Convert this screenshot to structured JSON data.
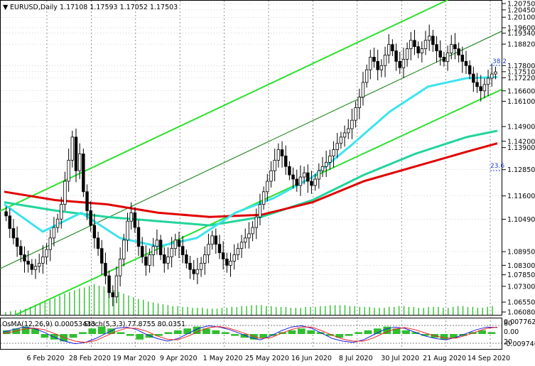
{
  "header": {
    "symbol": "EURUSD,Daily",
    "ohlc": "1.17108 1.17593 1.17052 1.17503"
  },
  "sub_header": {
    "osma": "OsMA(12,26,9) 0.00053433",
    "stoch": "Stoch(5,3,3) 77.8755 80.0351"
  },
  "colors": {
    "background": "#ffffff",
    "candle": "#000000",
    "grid": "#000000",
    "ma_cyan": "#3de3ee",
    "ma_teal": "#22d49b",
    "ma_red": "#e00000",
    "channel": "#2ee02e",
    "volume": "#2fbe2f",
    "osma": "#2fbe2f",
    "stoch_main": "#1d1ddf",
    "stoch_signal": "#ee2222",
    "fib": "#1f3fd0"
  },
  "chart_data": {
    "type": "candlestick",
    "title": "EURUSD,Daily",
    "ylim": [
      1.0608,
      1.2075
    ],
    "price_axis_labels": [
      "1.20750",
      "1.20450",
      "1.20100",
      "1.19600",
      "1.19340",
      "1.18820",
      "1.17800",
      "1.17510",
      "1.17220",
      "1.16600",
      "1.16100",
      "1.14900",
      "1.14200",
      "1.13900",
      "1.12850",
      "1.11600",
      "1.10490",
      "1.08950",
      "1.08300",
      "1.07850",
      "1.07300",
      "1.06550",
      "1.06080"
    ],
    "date_labels": [
      "6 Feb 2020",
      "28 Feb 2020",
      "19 Mar 2020",
      "9 Apr 2020",
      "1 May 2020",
      "25 May 2020",
      "16 Jun 2020",
      "8 Jul 2020",
      "30 Jul 2020",
      "21 Aug 2020",
      "14 Sep 2020"
    ],
    "fib_labels": [
      "38.2",
      "23.6"
    ],
    "candles_close": [
      1.1065,
      1.1005,
      1.096,
      1.092,
      1.088,
      1.085,
      1.0835,
      1.081,
      1.0825,
      1.084,
      1.087,
      1.0905,
      1.096,
      1.101,
      1.105,
      1.112,
      1.123,
      1.133,
      1.144,
      1.128,
      1.136,
      1.118,
      1.109,
      1.102,
      1.096,
      1.091,
      1.084,
      1.078,
      1.07,
      1.068,
      1.078,
      1.086,
      1.095,
      1.104,
      1.108,
      1.101,
      1.092,
      1.087,
      1.083,
      1.088,
      1.092,
      1.095,
      1.088,
      1.084,
      1.087,
      1.091,
      1.095,
      1.092,
      1.088,
      1.084,
      1.081,
      1.079,
      1.081,
      1.084,
      1.088,
      1.093,
      1.097,
      1.093,
      1.089,
      1.086,
      1.083,
      1.085,
      1.088,
      1.091,
      1.094,
      1.096,
      1.098,
      1.101,
      1.106,
      1.112,
      1.118,
      1.123,
      1.128,
      1.133,
      1.138,
      1.135,
      1.13,
      1.126,
      1.124,
      1.121,
      1.125,
      1.127,
      1.123,
      1.121,
      1.124,
      1.128,
      1.13,
      1.132,
      1.135,
      1.138,
      1.141,
      1.144,
      1.146,
      1.148,
      1.152,
      1.158,
      1.163,
      1.17,
      1.176,
      1.182,
      1.18,
      1.176,
      1.178,
      1.183,
      1.188,
      1.185,
      1.18,
      1.177,
      1.181,
      1.186,
      1.19,
      1.187,
      1.184,
      1.186,
      1.19,
      1.192,
      1.188,
      1.185,
      1.182,
      1.18,
      1.184,
      1.188,
      1.186,
      1.183,
      1.18,
      1.178,
      1.174,
      1.17,
      1.168,
      1.166,
      1.169,
      1.172,
      1.174,
      1.175
    ],
    "ma_cyan": [
      [
        0,
        1.112
      ],
      [
        15,
        1.099
      ],
      [
        30,
        1.108
      ],
      [
        45,
        1.096
      ],
      [
        60,
        1.092
      ],
      [
        75,
        1.096
      ],
      [
        90,
        1.108
      ],
      [
        105,
        1.115
      ],
      [
        120,
        1.125
      ],
      [
        135,
        1.14
      ],
      [
        150,
        1.156
      ],
      [
        165,
        1.168
      ],
      [
        180,
        1.172
      ],
      [
        192,
        1.1725
      ]
    ],
    "ma_teal": [
      [
        0,
        1.113
      ],
      [
        20,
        1.109
      ],
      [
        40,
        1.106
      ],
      [
        60,
        1.104
      ],
      [
        80,
        1.102
      ],
      [
        100,
        1.106
      ],
      [
        120,
        1.114
      ],
      [
        140,
        1.126
      ],
      [
        160,
        1.136
      ],
      [
        180,
        1.144
      ],
      [
        192,
        1.147
      ]
    ],
    "ma_red": [
      [
        0,
        1.118
      ],
      [
        20,
        1.114
      ],
      [
        40,
        1.112
      ],
      [
        60,
        1.108
      ],
      [
        80,
        1.106
      ],
      [
        100,
        1.107
      ],
      [
        120,
        1.113
      ],
      [
        140,
        1.123
      ],
      [
        160,
        1.13
      ],
      [
        180,
        1.137
      ],
      [
        192,
        1.141
      ]
    ],
    "volume": [
      6,
      8,
      10,
      12,
      14,
      18,
      22,
      26,
      30,
      34,
      38,
      44,
      48,
      52,
      56,
      60,
      62,
      66,
      70,
      66,
      64,
      60,
      56,
      52,
      48,
      44,
      40,
      36,
      34,
      30,
      28,
      26,
      24,
      22,
      20,
      20,
      18,
      18,
      16,
      16,
      16,
      14,
      14,
      14,
      16,
      16,
      18,
      18,
      20,
      20,
      22,
      22,
      22,
      20,
      20,
      18,
      18,
      18,
      16,
      16,
      16,
      18,
      18,
      18,
      20,
      20,
      22,
      22,
      22,
      22,
      20,
      20,
      18,
      18,
      18,
      16,
      16,
      16,
      18,
      18,
      20,
      20,
      18,
      18,
      16,
      16,
      18,
      18,
      18,
      16,
      16,
      18,
      20,
      20,
      18,
      18,
      16,
      16,
      18,
      20
    ],
    "osma": [
      2,
      3,
      4,
      3,
      -2,
      -3,
      -4,
      -2,
      1,
      3,
      4,
      3,
      1,
      -1,
      -3,
      -2,
      -1,
      1,
      2,
      3,
      4,
      3,
      2,
      1,
      -1,
      -2,
      -3,
      -2,
      -1,
      1,
      2,
      3,
      2,
      1,
      -1,
      -2,
      -1,
      1,
      2,
      3,
      4,
      3,
      2,
      1,
      -1,
      -2,
      -3,
      -2,
      -1,
      1,
      2,
      1
    ],
    "stoch_main": [
      60,
      70,
      80,
      75,
      60,
      40,
      25,
      15,
      20,
      35,
      55,
      75,
      80,
      70,
      50,
      35,
      25,
      35,
      55,
      75,
      85,
      80,
      70,
      55,
      40,
      30,
      45,
      65,
      80,
      85,
      75,
      55,
      35,
      25,
      20,
      30,
      50,
      70,
      80,
      75,
      60,
      45,
      35,
      30,
      40,
      55,
      70,
      80,
      78
    ],
    "stoch_signal": [
      55,
      62,
      72,
      76,
      70,
      55,
      38,
      25,
      20,
      27,
      45,
      63,
      76,
      75,
      63,
      45,
      32,
      30,
      45,
      63,
      78,
      82,
      75,
      62,
      48,
      36,
      38,
      55,
      70,
      80,
      80,
      65,
      48,
      33,
      25,
      25,
      38,
      57,
      72,
      78,
      70,
      57,
      45,
      37,
      37,
      48,
      62,
      75,
      80
    ]
  }
}
